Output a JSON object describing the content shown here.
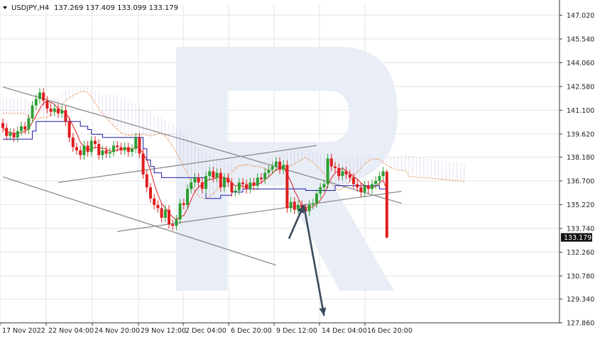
{
  "colors": {
    "bull": "#2e9e34",
    "bear": "#e01e1e",
    "tenkan": "#e01e1e",
    "kijun": "#1a1aa8",
    "cloud_a": "#e8843a",
    "cloud_b": "#b58ad6",
    "trend": "#8c8c8c",
    "arrow": "#3b4a5c",
    "grid": "#e4e4e4",
    "watermark": "#e9eef6"
  },
  "header": {
    "symbol": "USDJPY,H4",
    "ohlc": "137.269 137.409 133.099 133.179"
  },
  "watermark_icon": "brand-logo-r",
  "chart_data": {
    "type": "candlestick",
    "symbol": "USDJPY",
    "timeframe": "H4",
    "ohlc": {
      "open": 137.269,
      "high": 137.409,
      "low": 133.099,
      "close": 133.179
    },
    "ylim": [
      127.86,
      147.7
    ],
    "y_ticks": [
      "147.020",
      "145.540",
      "144.060",
      "142.580",
      "141.100",
      "139.620",
      "138.180",
      "136.700",
      "135.220",
      "133.740",
      "132.260",
      "130.780",
      "129.340",
      "127.860"
    ],
    "x_ticks": [
      "17 Nov 2022",
      "22 Nov 04:00",
      "24 Nov 20:00",
      "29 Nov 12:00",
      "2 Dec 04:00",
      "6 Dec 20:00",
      "9 Dec 12:00",
      "14 Dec 04:00",
      "16 Dec 20:00"
    ],
    "last_price_label": "133.179",
    "grid": true,
    "closes": [
      140.0,
      139.5,
      139.7,
      139.4,
      139.8,
      140.1,
      139.9,
      140.6,
      141.4,
      141.8,
      142.2,
      141.7,
      141.2,
      141.0,
      141.2,
      140.9,
      141.1,
      140.4,
      139.4,
      138.8,
      138.6,
      138.3,
      138.9,
      138.5,
      139.2,
      139.0,
      138.3,
      138.6,
      138.4,
      138.5,
      138.9,
      138.8,
      138.6,
      138.8,
      138.5,
      138.7,
      139.4,
      138.4,
      137.1,
      136.3,
      135.6,
      135.2,
      135.0,
      134.4,
      134.9,
      134.0,
      133.9,
      134.3,
      135.3,
      135.2,
      136.2,
      136.6,
      136.9,
      136.6,
      136.2,
      137.0,
      137.3,
      136.9,
      137.2,
      136.3,
      136.9,
      136.6,
      136.0,
      136.1,
      136.6,
      136.5,
      136.2,
      136.6,
      136.4,
      136.9,
      136.8,
      137.2,
      137.4,
      137.6,
      137.9,
      137.4,
      137.7,
      135.0,
      135.4,
      134.9,
      135.2,
      135.0,
      134.8,
      135.2,
      135.3,
      135.9,
      136.3,
      136.5,
      138.1,
      137.6,
      137.5,
      137.0,
      137.3,
      137.1,
      136.9,
      136.5,
      136.3,
      136.0,
      136.4,
      136.2,
      136.5,
      136.7,
      137.0,
      137.3,
      133.179
    ],
    "kijun": [
      139.3,
      139.3,
      139.3,
      139.3,
      139.3,
      139.3,
      139.3,
      139.3,
      139.8,
      140.4,
      140.4,
      140.4,
      140.4,
      140.4,
      140.4,
      140.4,
      140.4,
      140.4,
      140.4,
      140.4,
      140.4,
      140.1,
      140.1,
      139.9,
      139.6,
      139.6,
      139.6,
      139.4,
      139.4,
      139.4,
      139.4,
      139.4,
      139.4,
      139.4,
      139.4,
      139.4,
      139.4,
      139.4,
      138.7,
      138.0,
      137.6,
      137.2,
      137.2,
      136.9,
      136.9,
      136.9,
      136.9,
      136.9,
      136.9,
      136.9,
      136.9,
      136.9,
      136.9,
      136.9,
      136.9,
      135.6,
      135.6,
      135.6,
      135.6,
      135.8,
      135.8,
      135.8,
      136.0,
      136.0,
      136.0,
      136.2,
      136.2,
      136.2,
      136.2,
      136.2,
      136.2,
      136.2,
      136.2,
      136.2,
      136.2,
      136.2,
      136.2,
      136.2,
      136.2,
      136.2,
      136.2,
      136.2,
      136.1,
      136.1,
      136.1,
      136.1,
      136.1,
      136.1,
      136.1,
      136.1,
      136.4,
      136.4,
      136.4,
      136.4,
      136.4,
      136.4,
      136.4,
      136.4,
      136.4,
      136.4,
      136.4,
      136.4,
      136.2,
      136.2,
      136.2
    ],
    "trend_lines": [
      {
        "from": {
          "bar": 0,
          "price": 142.55
        },
        "to": {
          "bar": 108,
          "price": 135.3
        }
      },
      {
        "from": {
          "bar": 0,
          "price": 136.95
        },
        "to": {
          "bar": 74,
          "price": 131.45
        }
      },
      {
        "from": {
          "bar": 15,
          "price": 136.6
        },
        "to": {
          "bar": 85,
          "price": 138.9
        }
      },
      {
        "from": {
          "bar": 31,
          "price": 133.55
        },
        "to": {
          "bar": 108,
          "price": 136.05
        }
      }
    ],
    "forecast_path": [
      {
        "bar": 77.5,
        "price": 133.1
      },
      {
        "bar": 81.5,
        "price": 135.2
      },
      {
        "bar": 87,
        "price": 128.3
      }
    ]
  }
}
